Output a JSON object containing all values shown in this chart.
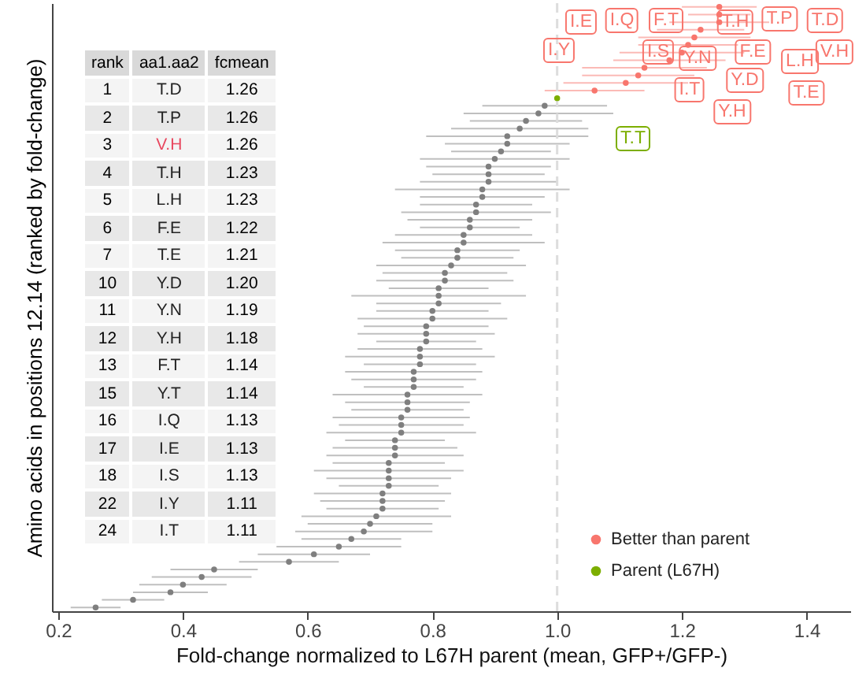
{
  "chart_data": [
    {
      "type": "scatter",
      "orientation": "horizontal",
      "xlabel": "Fold-change normalized to L67H parent (mean, GFP+/GFP-)",
      "ylabel": "Amino acids in positions 12.14 (ranked by fold-change)",
      "categories": [
        null,
        null,
        null,
        null,
        null,
        null,
        null,
        null,
        null,
        null,
        null,
        null,
        null,
        null,
        null,
        null,
        null,
        null,
        null,
        null,
        null,
        null,
        null,
        null,
        null,
        null,
        null,
        null,
        null,
        null,
        null,
        null,
        null,
        null,
        null,
        null,
        null,
        null,
        null,
        null,
        null,
        null,
        null,
        null,
        null,
        null,
        null,
        null,
        null,
        null,
        null,
        null,
        null,
        null,
        null,
        null,
        null,
        null,
        null,
        null,
        null,
        null,
        null,
        null,
        null,
        null,
        null,
        null,
        null,
        null,
        null,
        null,
        null,
        null,
        null,
        null,
        null,
        null,
        null,
        null
      ],
      "xlim": [
        0.19,
        1.47
      ],
      "xticks": [
        {
          "value": 0.2,
          "label": "0.2"
        },
        0.4,
        0.6,
        0.8,
        {
          "value": 1.0,
          "label": "1.0"
        },
        1.2,
        1.4
      ],
      "tick_labels": "x",
      "grid": false,
      "marker": "circle",
      "legend": "bottom right",
      "ref_lines": [
        {
          "axis": "x",
          "value": 1.0,
          "line_style": "dashed",
          "color": "#dddddd"
        }
      ],
      "series": [
        {
          "name": "Better than parent",
          "color": "#f8766d",
          "values": [
            1.26,
            1.26,
            1.26,
            1.23,
            1.22,
            1.21,
            1.2,
            1.18,
            1.14,
            1.13,
            1.11,
            1.06,
            null,
            null,
            null,
            null,
            null,
            null,
            null,
            null,
            null,
            null,
            null,
            null,
            null,
            null,
            null,
            null,
            null,
            null,
            null,
            null,
            null,
            null,
            null,
            null,
            null,
            null,
            null,
            null,
            null,
            null,
            null,
            null,
            null,
            null,
            null,
            null,
            null,
            null,
            null,
            null,
            null,
            null,
            null,
            null,
            null,
            null,
            null,
            null,
            null,
            null,
            null,
            null,
            null,
            null,
            null,
            null,
            null,
            null,
            null,
            null,
            null,
            null,
            null,
            null,
            null,
            null,
            null,
            null
          ],
          "errors": [
            0.06,
            0.05,
            0.08,
            0.07,
            0.09,
            0.08,
            0.1,
            0.09,
            0.1,
            0.09,
            0.1,
            0.08,
            null,
            null,
            null,
            null,
            null,
            null,
            null,
            null,
            null,
            null,
            null,
            null,
            null,
            null,
            null,
            null,
            null,
            null,
            null,
            null,
            null,
            null,
            null,
            null,
            null,
            null,
            null,
            null,
            null,
            null,
            null,
            null,
            null,
            null,
            null,
            null,
            null,
            null,
            null,
            null,
            null,
            null,
            null,
            null,
            null,
            null,
            null,
            null,
            null,
            null,
            null,
            null,
            null,
            null,
            null,
            null,
            null,
            null,
            null,
            null,
            null,
            null,
            null,
            null,
            null,
            null,
            null,
            null
          ]
        },
        {
          "name": "Parent (L67H)",
          "color": "#7cae00",
          "values": [
            null,
            null,
            null,
            null,
            null,
            null,
            null,
            null,
            null,
            null,
            null,
            null,
            1.0,
            null,
            null,
            null,
            null,
            null,
            null,
            null,
            null,
            null,
            null,
            null,
            null,
            null,
            null,
            null,
            null,
            null,
            null,
            null,
            null,
            null,
            null,
            null,
            null,
            null,
            null,
            null,
            null,
            null,
            null,
            null,
            null,
            null,
            null,
            null,
            null,
            null,
            null,
            null,
            null,
            null,
            null,
            null,
            null,
            null,
            null,
            null,
            null,
            null,
            null,
            null,
            null,
            null,
            null,
            null,
            null,
            null,
            null,
            null,
            null,
            null,
            null,
            null,
            null,
            null,
            null,
            null
          ]
        },
        {
          "color": "#7f7f7f",
          "values": [
            null,
            null,
            null,
            null,
            null,
            null,
            null,
            null,
            null,
            null,
            null,
            null,
            null,
            0.98,
            0.97,
            0.95,
            0.94,
            0.92,
            0.92,
            0.91,
            0.9,
            0.89,
            0.89,
            0.89,
            0.88,
            0.88,
            0.87,
            0.87,
            0.86,
            0.86,
            0.85,
            0.85,
            0.84,
            0.84,
            0.83,
            0.82,
            0.82,
            0.81,
            0.81,
            0.81,
            0.8,
            0.8,
            0.79,
            0.79,
            0.79,
            0.78,
            0.78,
            0.78,
            0.77,
            0.77,
            0.77,
            0.76,
            0.76,
            0.76,
            0.75,
            0.75,
            0.75,
            0.74,
            0.74,
            0.74,
            0.73,
            0.73,
            0.73,
            0.73,
            0.72,
            0.72,
            0.72,
            0.71,
            0.7,
            0.69,
            0.67,
            0.65,
            0.61,
            0.57,
            0.45,
            0.43,
            0.4,
            0.38,
            0.32,
            0.26
          ],
          "errors": [
            null,
            null,
            null,
            null,
            null,
            null,
            null,
            null,
            null,
            null,
            null,
            null,
            null,
            0.1,
            0.12,
            0.09,
            0.11,
            0.13,
            0.1,
            0.08,
            0.12,
            0.1,
            0.09,
            0.11,
            0.14,
            0.1,
            0.09,
            0.12,
            0.1,
            0.08,
            0.11,
            0.13,
            0.1,
            0.09,
            0.12,
            0.1,
            0.11,
            0.08,
            0.14,
            0.1,
            0.09,
            0.12,
            0.1,
            0.11,
            0.08,
            0.1,
            0.12,
            0.09,
            0.11,
            0.1,
            0.08,
            0.12,
            0.1,
            0.09,
            0.11,
            0.1,
            0.12,
            0.08,
            0.1,
            0.11,
            0.09,
            0.12,
            0.1,
            0.08,
            0.11,
            0.1,
            0.09,
            0.12,
            0.1,
            0.11,
            0.08,
            0.1,
            0.09,
            0.08,
            0.07,
            0.08,
            0.07,
            0.06,
            0.05,
            0.04
          ]
        }
      ],
      "annotations": [
        "T.D",
        "T.P",
        "V.H",
        "T.H",
        "L.H",
        "F.E",
        "T.E",
        "Y.D",
        "Y.N",
        "Y.H",
        "F.T",
        "I.Q",
        "I.E",
        "I.S",
        "I.Y",
        "I.T",
        "T.T"
      ]
    },
    {
      "type": "other",
      "annotations": [
        "rank",
        "aa1.aa2",
        "fcmean",
        "1",
        "2",
        "3",
        "4",
        "5",
        "6",
        "7",
        "10",
        "11",
        "12",
        "13",
        "15",
        "16",
        "17",
        "18",
        "22",
        "24"
      ],
      "categories": [
        "T.D",
        "T.P",
        "V.H",
        "T.H",
        "L.H",
        "F.E",
        "T.E",
        "Y.D",
        "Y.N",
        "Y.H",
        "F.T",
        "Y.T",
        "I.Q",
        "I.E",
        "I.S",
        "I.Y",
        "I.T"
      ],
      "value_labels": [
        "1.26",
        "1.26",
        "1.26",
        "1.23",
        "1.23",
        "1.22",
        "1.21",
        "1.20",
        "1.19",
        "1.18",
        "1.14",
        "1.14",
        "1.13",
        "1.13",
        "1.13",
        "1.11",
        "1.11"
      ],
      "colors": [
        "#222222",
        "#222222",
        "#e8475f",
        "#222222",
        "#222222",
        "#222222",
        "#222222",
        "#222222",
        "#222222",
        "#222222",
        "#222222",
        "#222222",
        "#222222",
        "#222222",
        "#222222",
        "#222222",
        "#222222"
      ]
    }
  ]
}
